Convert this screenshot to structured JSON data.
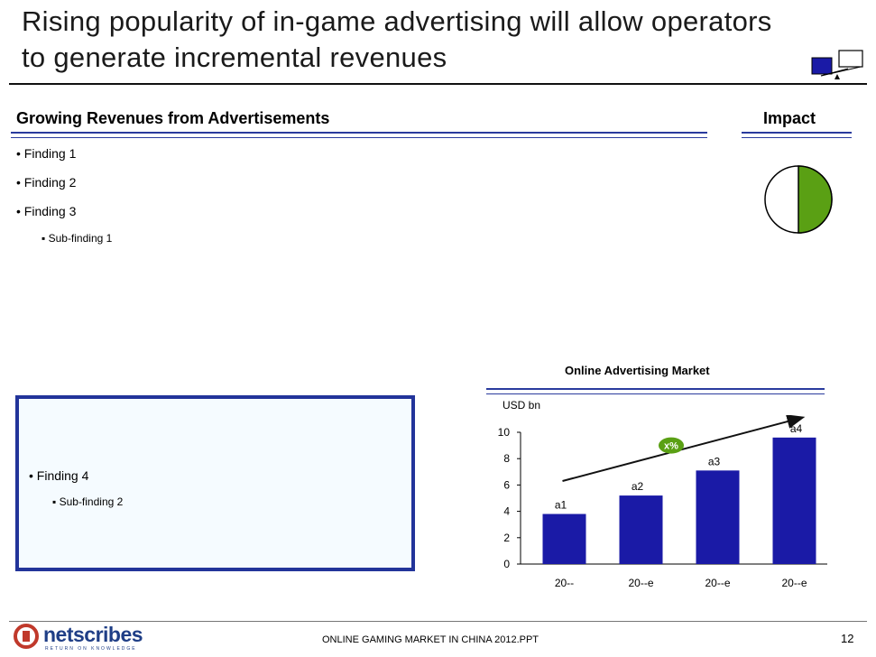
{
  "slide": {
    "title_line1": "Rising popularity of in-game advertising will allow operators",
    "title_line2": "to generate incremental revenues"
  },
  "left_panel": {
    "heading": "Growing Revenues from Advertisements",
    "findings": [
      "• Finding 1",
      "• Finding 2",
      "• Finding 3"
    ],
    "sub_findings": [
      "▪ Sub-finding 1"
    ]
  },
  "impact": {
    "heading": "Impact",
    "level": 0.5,
    "fill_color": "#5aa014"
  },
  "box": {
    "finding": "• Finding 4",
    "sub_finding": "▪ Sub-finding 2"
  },
  "chart_data": {
    "type": "bar",
    "title": "Online Advertising Market",
    "ylabel": "USD bn",
    "categories": [
      "20--",
      "20--e",
      "20--e",
      "20--e"
    ],
    "values": [
      3.8,
      5.2,
      7.1,
      9.6
    ],
    "data_labels": [
      "a1",
      "a2",
      "a3",
      "a4"
    ],
    "ylim": [
      0,
      10
    ],
    "yticks": [
      "0",
      "2",
      "4",
      "6",
      "8",
      "10"
    ],
    "growth_label": "x%",
    "bar_color": "#1a1aa6",
    "growth_color": "#5aa014"
  },
  "footer": {
    "logo_text": "netscribes",
    "logo_tagline": "RETURN ON KNOWLEDGE",
    "center_text": "ONLINE GAMING MARKET IN CHINA 2012.PPT",
    "page_number": "12"
  }
}
